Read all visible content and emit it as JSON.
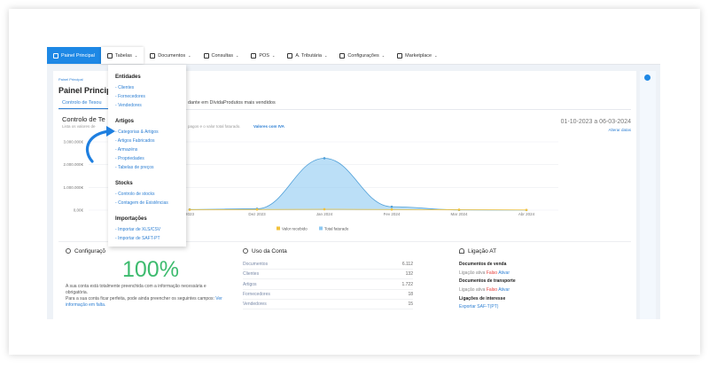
{
  "nav": {
    "tabs": [
      "Painel Principal",
      "Tabelas",
      "Documentos",
      "Consultas",
      "POS",
      "A. Tributária",
      "Configurações",
      "Marketplace"
    ]
  },
  "dropdown": {
    "sections": [
      {
        "title": "Entidades",
        "items": [
          "Clientes",
          "Fornecedores",
          "Vendedores"
        ]
      },
      {
        "title": "Artigos",
        "items": [
          "Categorias & Artigos",
          "Artigos Fabricados",
          "Armazéns",
          "Propriedades",
          "Tabelas de preços"
        ]
      },
      {
        "title": "Stocks",
        "items": [
          "Controlo de stocks",
          "Contagem de Existências"
        ]
      },
      {
        "title": "Importações",
        "items": [
          "Importar de XLS/CSV",
          "Importar de SAFT-PT"
        ]
      }
    ]
  },
  "panel": {
    "breadcrumb": "Painel Principal",
    "title": "Painel Princip",
    "tabs": [
      "Controlo de Tesou",
      "dante em Dívida",
      "Produtos mais vendidos"
    ],
    "section_title": "Controlo de Te",
    "subtitle_left": "Lista os valores de",
    "subtitle_right": "pagos e o valor total faturado.",
    "vat_link": "Valores com IVA",
    "date_range": "01-10-2023 a 06-03-2024",
    "change_dates": "Alterar datas"
  },
  "chart": {
    "type": "line",
    "categories": [
      "2023",
      "Dez 2023",
      "Jan 2024",
      "Fev 2024",
      "Mar 2024",
      "Abr 2024"
    ],
    "ylim": [
      0,
      3000000
    ],
    "yticks": [
      {
        "value": 0,
        "label": "0,00€"
      },
      {
        "value": 1000000,
        "label": "1.000.000€"
      },
      {
        "value": 2000000,
        "label": "2.000.000€"
      },
      {
        "value": 3000000,
        "label": "3.000.000€"
      }
    ],
    "grid": true,
    "series": [
      {
        "name": "Valor recebido",
        "color": "#f2c23c",
        "values": [
          20000,
          30000,
          40000,
          30000,
          20000,
          10000
        ]
      },
      {
        "name": "Total faturado",
        "color": "#8ec9f2",
        "values": [
          30000,
          60000,
          2280000,
          150000,
          10000,
          5000
        ]
      }
    ]
  },
  "config": {
    "title": "Configuraçõ",
    "percent": "100%",
    "text1": "A sua conta está totalmente preenchida com a informação necessária e",
    "text2": "obrigatória.",
    "text3": "Para a sua conta ficar perfeita, pode ainda preencher os seguintes campos:",
    "link1": "Ver",
    "link2": "informação em falta."
  },
  "usage": {
    "title": "Uso da Conta",
    "rows": [
      [
        "Documentos",
        "6.112"
      ],
      [
        "Clientes",
        "132"
      ],
      [
        "Artigos",
        "1.722"
      ],
      [
        "Fornecedores",
        "18"
      ],
      [
        "Vendedores",
        "15"
      ]
    ]
  },
  "at": {
    "title": "Ligação AT",
    "sales": "Documentos de venda",
    "active1": "Ligação ativa",
    "false1": "Falso",
    "enable1": "Ativar",
    "transport": "Documentos de transporte",
    "active2": "Ligação ativa",
    "false2": "Falso",
    "enable2": "Ativar",
    "interest": "Ligações de interesse",
    "export": "Exportar SAF-T(PT)"
  }
}
